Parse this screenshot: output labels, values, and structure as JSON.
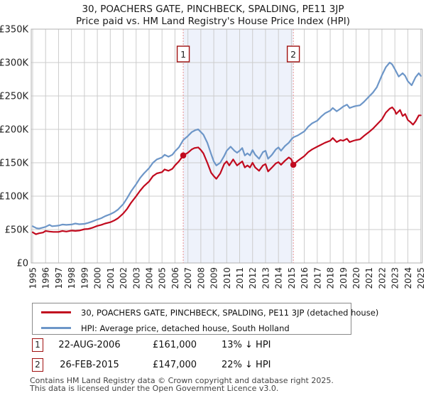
{
  "title": {
    "line1": "30, POACHERS GATE, PINCHBECK, SPALDING, PE11 3JP",
    "line2": "Price paid vs. HM Land Registry's House Price Index (HPI)"
  },
  "chart_data": {
    "type": "line",
    "unit": "GBP_thousands",
    "x_axis": {
      "range": [
        1995,
        2025
      ],
      "ticks": [
        "1995",
        "1996",
        "1997",
        "1998",
        "1999",
        "2000",
        "2001",
        "2002",
        "2003",
        "2004",
        "2005",
        "2006",
        "2007",
        "2008",
        "2009",
        "2010",
        "2011",
        "2012",
        "2013",
        "2014",
        "2015",
        "2016",
        "2017",
        "2018",
        "2019",
        "2020",
        "2021",
        "2022",
        "2023",
        "2024",
        "2025"
      ]
    },
    "y_axis": {
      "range_k": [
        0,
        350
      ],
      "tick_values_k": [
        0,
        50,
        100,
        150,
        200,
        250,
        300,
        350
      ],
      "ticks": [
        "£0",
        "£50K",
        "£100K",
        "£150K",
        "£200K",
        "£250K",
        "£300K",
        "£350K"
      ]
    },
    "grid": true,
    "colors": {
      "grid": "#cccccc",
      "border": "#b0b0b0",
      "shade": "#eef2fb",
      "sale_line": "#e98f8f",
      "marker_border": "#a01010"
    },
    "shaded_region": [
      2006.64,
      2015.15
    ],
    "sales": [
      {
        "n": "1",
        "year": 2006.64,
        "price_k": 161
      },
      {
        "n": "2",
        "year": 2015.15,
        "price_k": 147
      }
    ],
    "series": [
      {
        "name": "30, POACHERS GATE, PINCHBECK, SPALDING, PE11 3JP (detached house)",
        "color": "#c10a1e",
        "points": [
          [
            1995.0,
            46
          ],
          [
            1995.25,
            43
          ],
          [
            1995.5,
            44.5
          ],
          [
            1995.8,
            45.5
          ],
          [
            1996.0,
            48
          ],
          [
            1996.3,
            47
          ],
          [
            1996.6,
            46.5
          ],
          [
            1997.0,
            46.5
          ],
          [
            1997.3,
            48
          ],
          [
            1997.6,
            47
          ],
          [
            1998.0,
            48.5
          ],
          [
            1998.3,
            48
          ],
          [
            1998.6,
            48.5
          ],
          [
            1999.0,
            50.5
          ],
          [
            1999.3,
            51
          ],
          [
            1999.6,
            52.5
          ],
          [
            2000.0,
            55.5
          ],
          [
            2000.3,
            57
          ],
          [
            2000.6,
            59
          ],
          [
            2001.0,
            61
          ],
          [
            2001.3,
            63.5
          ],
          [
            2001.6,
            67
          ],
          [
            2002.0,
            74
          ],
          [
            2002.3,
            81
          ],
          [
            2002.6,
            90
          ],
          [
            2003.0,
            100
          ],
          [
            2003.3,
            108
          ],
          [
            2003.6,
            115
          ],
          [
            2004.0,
            122
          ],
          [
            2004.3,
            130
          ],
          [
            2004.6,
            134
          ],
          [
            2005.0,
            136
          ],
          [
            2005.2,
            140
          ],
          [
            2005.5,
            138
          ],
          [
            2005.8,
            141
          ],
          [
            2006.0,
            146
          ],
          [
            2006.3,
            152
          ],
          [
            2006.64,
            161
          ],
          [
            2007.0,
            165
          ],
          [
            2007.3,
            170
          ],
          [
            2007.5,
            172
          ],
          [
            2007.8,
            173
          ],
          [
            2008.0,
            169
          ],
          [
            2008.2,
            164
          ],
          [
            2008.5,
            150
          ],
          [
            2008.8,
            135
          ],
          [
            2009.0,
            130
          ],
          [
            2009.2,
            126
          ],
          [
            2009.5,
            134
          ],
          [
            2009.8,
            148
          ],
          [
            2010.0,
            152
          ],
          [
            2010.2,
            146
          ],
          [
            2010.5,
            155
          ],
          [
            2010.8,
            146
          ],
          [
            2011.0,
            149
          ],
          [
            2011.2,
            152
          ],
          [
            2011.4,
            143
          ],
          [
            2011.6,
            146
          ],
          [
            2011.8,
            143
          ],
          [
            2012.0,
            150
          ],
          [
            2012.2,
            143
          ],
          [
            2012.5,
            138
          ],
          [
            2012.8,
            146
          ],
          [
            2013.0,
            148
          ],
          [
            2013.2,
            137
          ],
          [
            2013.5,
            143
          ],
          [
            2013.8,
            149
          ],
          [
            2014.0,
            151
          ],
          [
            2014.2,
            147
          ],
          [
            2014.5,
            153
          ],
          [
            2014.8,
            158
          ],
          [
            2015.0,
            155
          ],
          [
            2015.15,
            147
          ],
          [
            2015.5,
            153
          ],
          [
            2016.0,
            160
          ],
          [
            2016.3,
            166
          ],
          [
            2016.6,
            170
          ],
          [
            2017.0,
            174
          ],
          [
            2017.3,
            177
          ],
          [
            2017.6,
            180
          ],
          [
            2018.0,
            183
          ],
          [
            2018.2,
            187
          ],
          [
            2018.5,
            181
          ],
          [
            2018.8,
            184
          ],
          [
            2019.0,
            183
          ],
          [
            2019.3,
            186
          ],
          [
            2019.5,
            181
          ],
          [
            2019.8,
            183
          ],
          [
            2020.0,
            184
          ],
          [
            2020.3,
            185
          ],
          [
            2020.6,
            190
          ],
          [
            2021.0,
            196
          ],
          [
            2021.3,
            201
          ],
          [
            2021.6,
            207
          ],
          [
            2022.0,
            215
          ],
          [
            2022.3,
            225
          ],
          [
            2022.6,
            231
          ],
          [
            2022.8,
            233
          ],
          [
            2023.0,
            228
          ],
          [
            2023.1,
            223
          ],
          [
            2023.4,
            229
          ],
          [
            2023.6,
            220
          ],
          [
            2023.8,
            223
          ],
          [
            2024.0,
            214
          ],
          [
            2024.2,
            211
          ],
          [
            2024.4,
            207
          ],
          [
            2024.6,
            212
          ],
          [
            2024.85,
            221
          ],
          [
            2025.0,
            221
          ]
        ]
      },
      {
        "name": "HPI: Average price, detached house, South Holland",
        "color": "#6d96c8",
        "points": [
          [
            1995.0,
            55
          ],
          [
            1995.3,
            52
          ],
          [
            1995.5,
            51.5
          ],
          [
            1995.8,
            53
          ],
          [
            1996.0,
            54
          ],
          [
            1996.3,
            57
          ],
          [
            1996.5,
            55
          ],
          [
            1996.8,
            55.5
          ],
          [
            1997.0,
            56
          ],
          [
            1997.3,
            57.5
          ],
          [
            1997.6,
            57
          ],
          [
            1998.0,
            57.5
          ],
          [
            1998.3,
            59
          ],
          [
            1998.6,
            58
          ],
          [
            1999.0,
            58.5
          ],
          [
            1999.3,
            60
          ],
          [
            1999.6,
            62
          ],
          [
            2000.0,
            65
          ],
          [
            2000.3,
            67
          ],
          [
            2000.6,
            70
          ],
          [
            2001.0,
            73
          ],
          [
            2001.3,
            76
          ],
          [
            2001.6,
            80
          ],
          [
            2002.0,
            88
          ],
          [
            2002.3,
            97
          ],
          [
            2002.6,
            107
          ],
          [
            2003.0,
            118
          ],
          [
            2003.3,
            127
          ],
          [
            2003.6,
            134
          ],
          [
            2004.0,
            142
          ],
          [
            2004.3,
            150
          ],
          [
            2004.6,
            155
          ],
          [
            2005.0,
            158
          ],
          [
            2005.2,
            162
          ],
          [
            2005.5,
            159
          ],
          [
            2005.8,
            162
          ],
          [
            2006.0,
            167
          ],
          [
            2006.3,
            173
          ],
          [
            2006.64,
            184
          ],
          [
            2007.0,
            190
          ],
          [
            2007.3,
            196
          ],
          [
            2007.6,
            199
          ],
          [
            2007.8,
            200
          ],
          [
            2008.0,
            196
          ],
          [
            2008.2,
            192
          ],
          [
            2008.5,
            180
          ],
          [
            2008.8,
            163
          ],
          [
            2009.0,
            152
          ],
          [
            2009.2,
            146
          ],
          [
            2009.5,
            150
          ],
          [
            2009.8,
            160
          ],
          [
            2010.0,
            168
          ],
          [
            2010.3,
            174
          ],
          [
            2010.6,
            168
          ],
          [
            2010.8,
            165
          ],
          [
            2011.0,
            168
          ],
          [
            2011.2,
            172
          ],
          [
            2011.4,
            161
          ],
          [
            2011.6,
            164
          ],
          [
            2011.8,
            161
          ],
          [
            2012.0,
            169
          ],
          [
            2012.2,
            162
          ],
          [
            2012.5,
            156
          ],
          [
            2012.8,
            166
          ],
          [
            2013.0,
            168
          ],
          [
            2013.2,
            156
          ],
          [
            2013.5,
            162
          ],
          [
            2013.8,
            170
          ],
          [
            2014.0,
            173
          ],
          [
            2014.2,
            168
          ],
          [
            2014.5,
            175
          ],
          [
            2014.8,
            180
          ],
          [
            2015.0,
            185
          ],
          [
            2015.15,
            188
          ],
          [
            2015.5,
            191
          ],
          [
            2016.0,
            197
          ],
          [
            2016.3,
            204
          ],
          [
            2016.6,
            209
          ],
          [
            2017.0,
            213
          ],
          [
            2017.3,
            219
          ],
          [
            2017.6,
            224
          ],
          [
            2018.0,
            228
          ],
          [
            2018.2,
            232
          ],
          [
            2018.5,
            227
          ],
          [
            2018.8,
            231
          ],
          [
            2019.0,
            234
          ],
          [
            2019.3,
            237
          ],
          [
            2019.5,
            232
          ],
          [
            2019.8,
            234
          ],
          [
            2020.0,
            235
          ],
          [
            2020.3,
            236
          ],
          [
            2020.6,
            241
          ],
          [
            2021.0,
            249
          ],
          [
            2021.3,
            255
          ],
          [
            2021.6,
            263
          ],
          [
            2022.0,
            281
          ],
          [
            2022.3,
            293
          ],
          [
            2022.6,
            300
          ],
          [
            2022.8,
            297
          ],
          [
            2023.0,
            290
          ],
          [
            2023.3,
            279
          ],
          [
            2023.6,
            284
          ],
          [
            2023.8,
            280
          ],
          [
            2024.0,
            272
          ],
          [
            2024.3,
            266
          ],
          [
            2024.6,
            278
          ],
          [
            2024.85,
            284
          ],
          [
            2025.0,
            280
          ]
        ]
      }
    ]
  },
  "legend": {
    "items": [
      {
        "label": "30, POACHERS GATE, PINCHBECK, SPALDING, PE11 3JP (detached house)",
        "color": "#c10a1e"
      },
      {
        "label": "HPI: Average price, detached house, South Holland",
        "color": "#6d96c8"
      }
    ]
  },
  "annotations": [
    {
      "num": "1",
      "date": "22-AUG-2006",
      "price": "£161,000",
      "vs_hpi": "13% ↓ HPI"
    },
    {
      "num": "2",
      "date": "26-FEB-2015",
      "price": "£147,000",
      "vs_hpi": "22% ↓ HPI"
    }
  ],
  "footer": {
    "line1": "Contains HM Land Registry data © Crown copyright and database right 2025.",
    "line2": "This data is licensed under the Open Government Licence v3.0."
  }
}
